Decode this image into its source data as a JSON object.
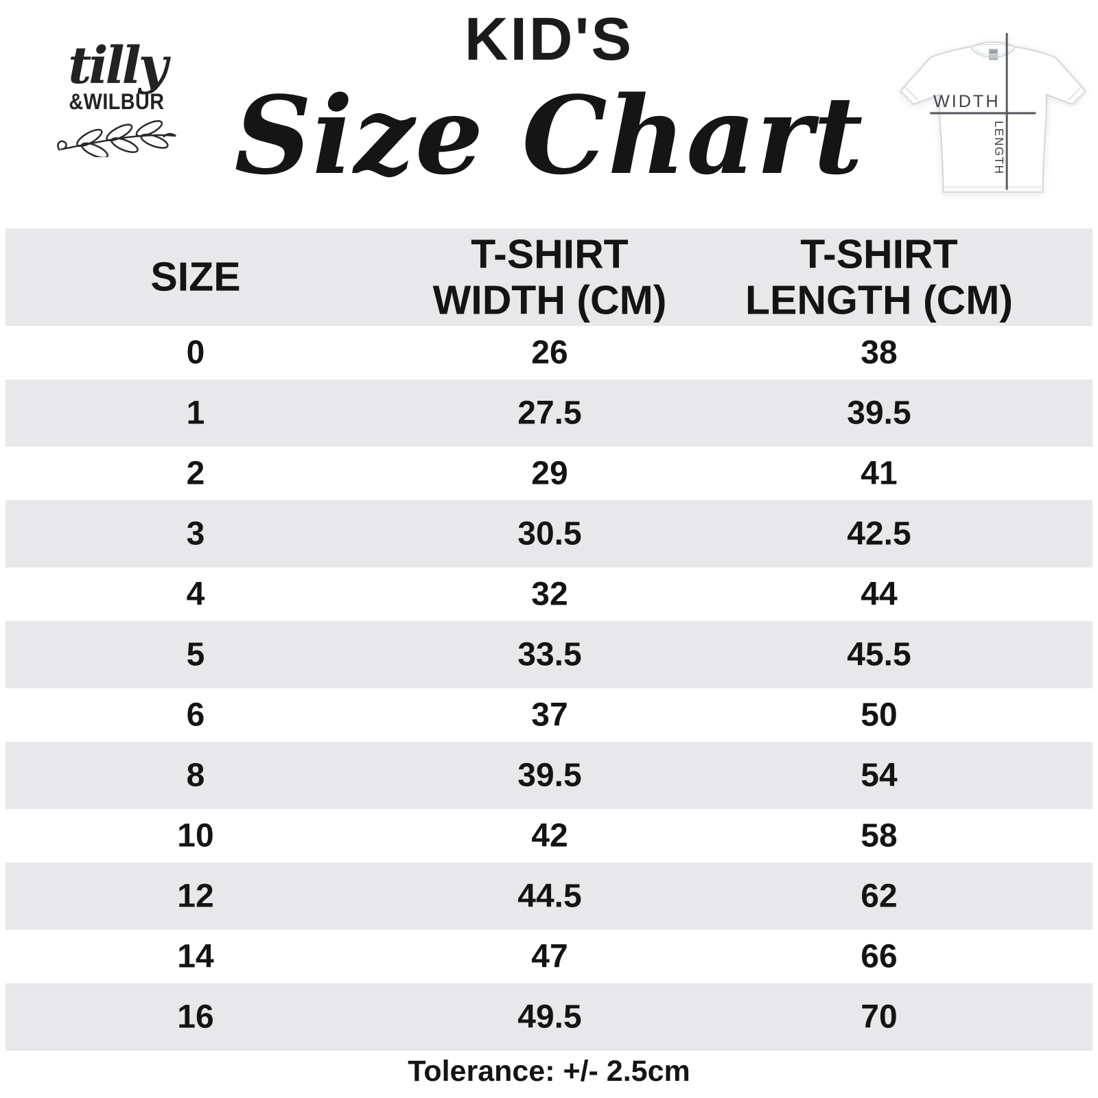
{
  "brand": {
    "script": "tilly",
    "caps": "&WILBUR"
  },
  "title": {
    "kicker": "KID'S",
    "script": "Size Chart"
  },
  "diagram": {
    "width_label": "WIDTH",
    "length_label": "LENGTH"
  },
  "table": {
    "header_lines": [
      [
        "SIZE"
      ],
      [
        "T-SHIRT",
        "WIDTH (CM)"
      ],
      [
        "T-SHIRT",
        "LENGTH (CM)"
      ]
    ]
  },
  "footer": {
    "tolerance": "Tolerance: +/- 2.5cm"
  },
  "colors": {
    "band_gray": "#e8e8ea",
    "text": "#141414",
    "diagram_line": "#585c61",
    "diagram_text": "#3f4347"
  },
  "chart_data": {
    "type": "table",
    "title": "KID'S Size Chart",
    "columns": [
      "SIZE",
      "T-SHIRT WIDTH (CM)",
      "T-SHIRT LENGTH (CM)"
    ],
    "rows": [
      [
        0,
        26,
        38
      ],
      [
        1,
        27.5,
        39.5
      ],
      [
        2,
        29,
        41
      ],
      [
        3,
        30.5,
        42.5
      ],
      [
        4,
        32,
        44
      ],
      [
        5,
        33.5,
        45.5
      ],
      [
        6,
        37,
        50
      ],
      [
        8,
        39.5,
        54
      ],
      [
        10,
        42,
        58
      ],
      [
        12,
        44.5,
        62
      ],
      [
        14,
        47,
        66
      ],
      [
        16,
        49.5,
        70
      ]
    ],
    "footnote": "Tolerance: +/- 2.5cm"
  }
}
